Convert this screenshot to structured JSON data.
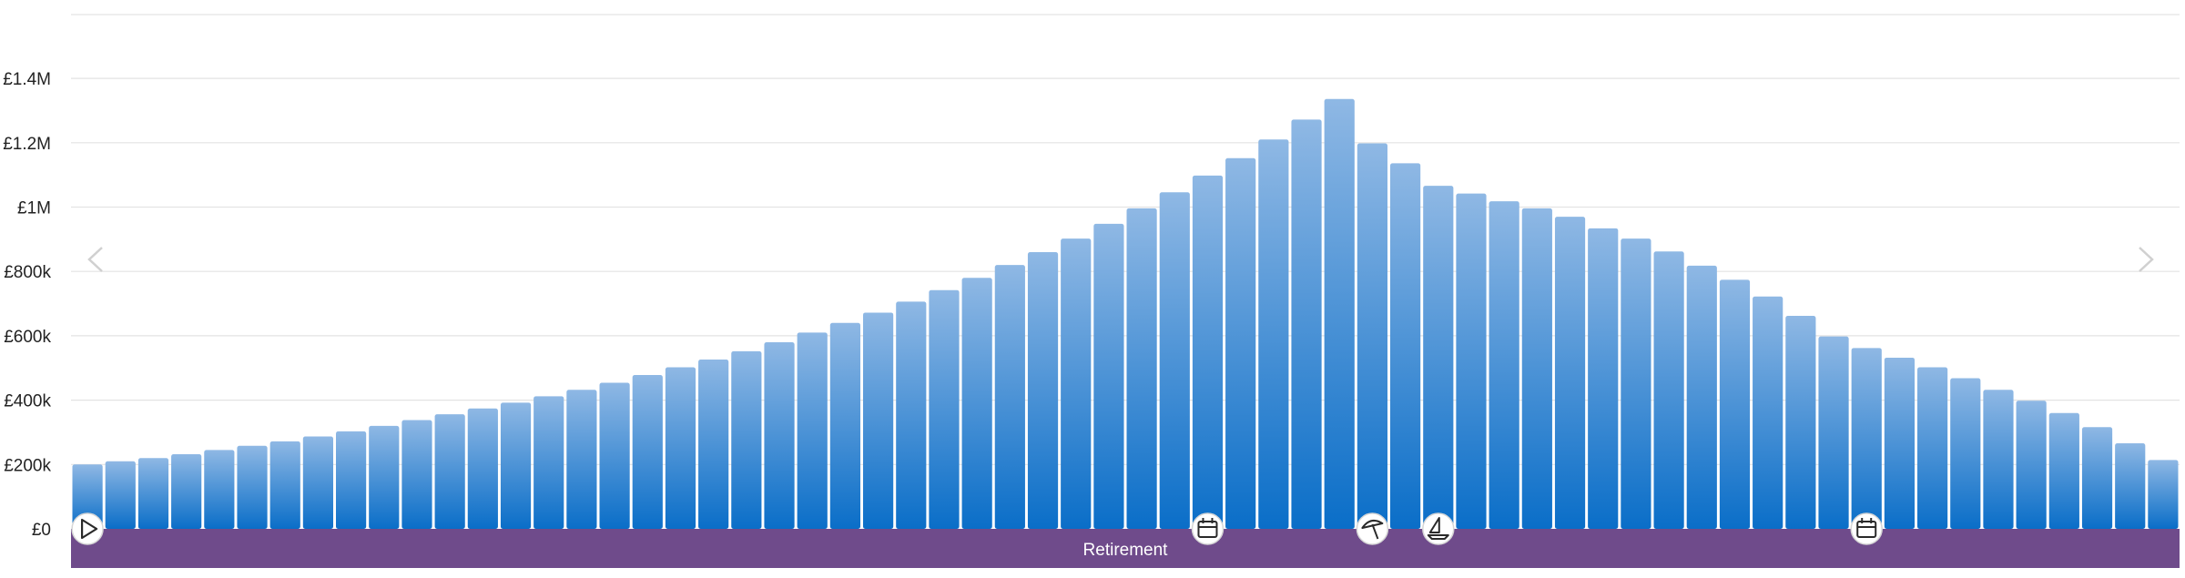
{
  "chart_data": {
    "type": "bar",
    "title": "",
    "xlabel": "",
    "ylabel": "",
    "ylim": [
      0,
      1600000
    ],
    "yticks": [
      {
        "value": 0,
        "label": "£0"
      },
      {
        "value": 200000,
        "label": "£200k"
      },
      {
        "value": 400000,
        "label": "£400k"
      },
      {
        "value": 600000,
        "label": "£600k"
      },
      {
        "value": 800000,
        "label": "£800k"
      },
      {
        "value": 1000000,
        "label": "£1M"
      },
      {
        "value": 1200000,
        "label": "£1.2M"
      },
      {
        "value": 1400000,
        "label": "£1.4M"
      }
    ],
    "grid": true,
    "bar_color_top": "#8fb8e4",
    "bar_color_bottom": "#0a6ec8",
    "values": [
      200000,
      210000,
      220000,
      232000,
      245000,
      258000,
      272000,
      287000,
      303000,
      320000,
      338000,
      356000,
      374000,
      392000,
      412000,
      432000,
      454000,
      478000,
      502000,
      526000,
      552000,
      580000,
      610000,
      640000,
      672000,
      706000,
      742000,
      780000,
      820000,
      860000,
      902000,
      948000,
      996000,
      1046000,
      1098000,
      1152000,
      1210000,
      1272000,
      1336000,
      1198000,
      1136000,
      1066000,
      1042000,
      1018000,
      996000,
      970000,
      934000,
      902000,
      862000,
      818000,
      774000,
      722000,
      662000,
      598000,
      562000,
      532000,
      502000,
      468000,
      432000,
      398000,
      360000,
      316000,
      266000,
      214000
    ]
  },
  "timeline": {
    "band_color": "#6f4b8b",
    "label": "Retirement",
    "markers": [
      {
        "icon": "play-icon",
        "bar_index": 0
      },
      {
        "icon": "calendar-icon",
        "bar_index": 34
      },
      {
        "icon": "beach-umbrella-icon",
        "bar_index": 39
      },
      {
        "icon": "sailboat-icon",
        "bar_index": 41
      },
      {
        "icon": "calendar-icon",
        "bar_index": 54
      }
    ]
  },
  "nav": {
    "prev_icon": "chevron-left-icon",
    "next_icon": "chevron-right-icon"
  }
}
